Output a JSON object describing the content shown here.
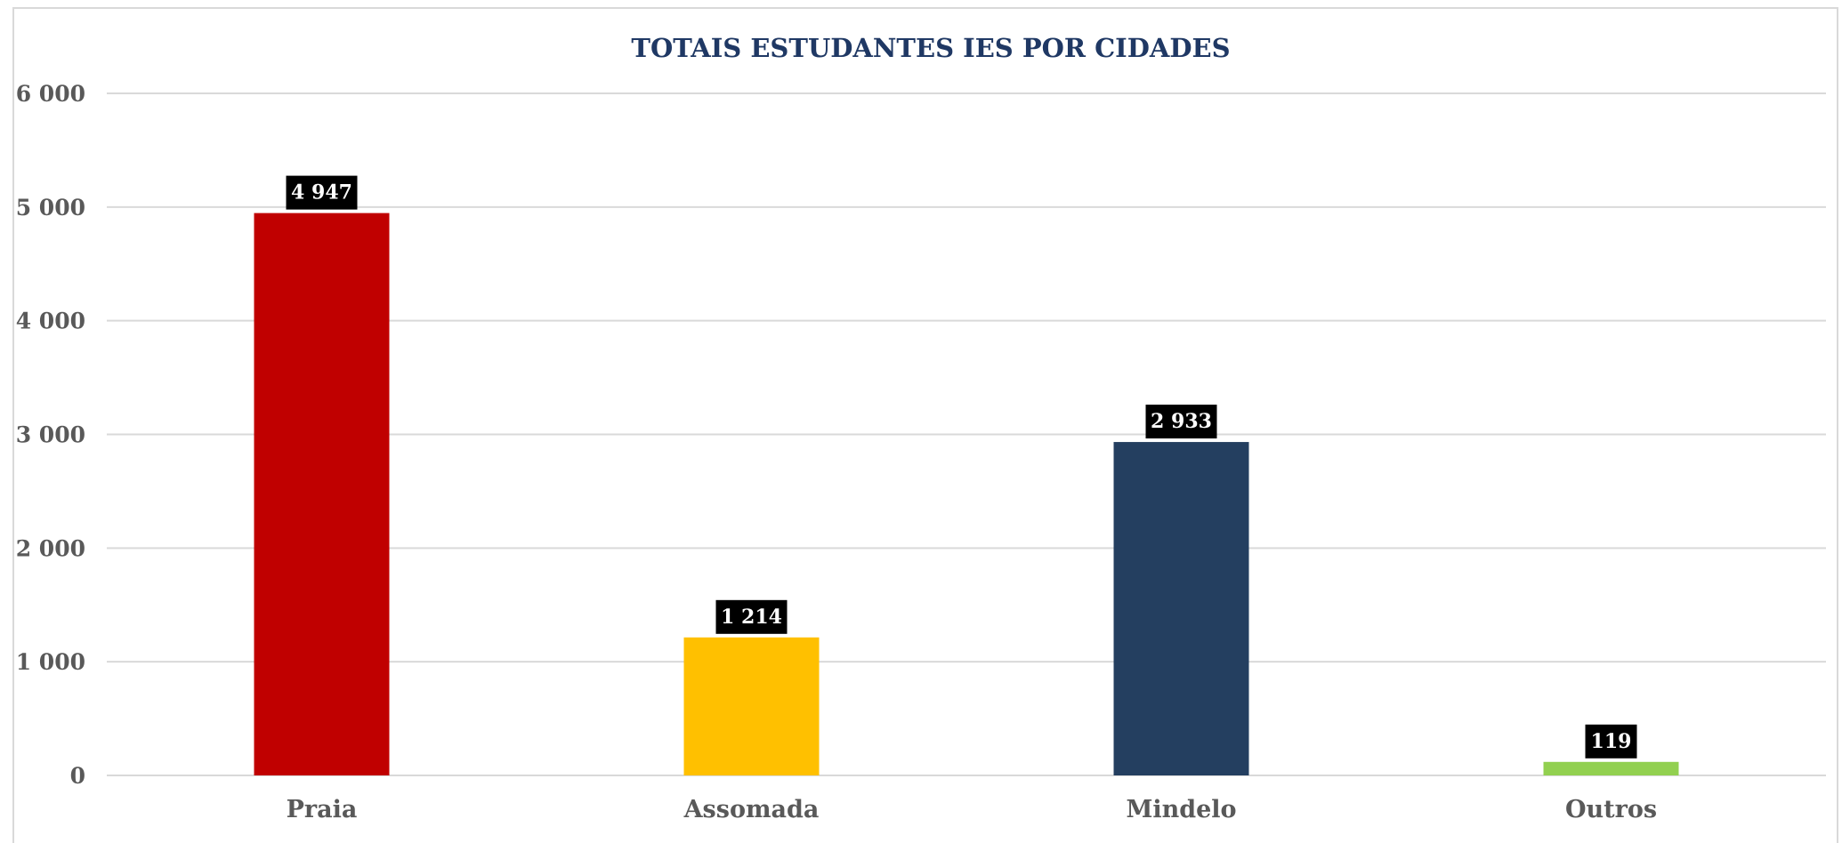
{
  "chart_data": {
    "type": "bar",
    "title": "TOTAIS ESTUDANTES IES POR CIDADES",
    "categories": [
      "Praia",
      "Assomada",
      "Mindelo",
      "Outros"
    ],
    "values": [
      4947,
      1214,
      2933,
      119
    ],
    "data_labels": [
      "4 947",
      "1 214",
      "2 933",
      "119"
    ],
    "colors": [
      "#c00000",
      "#ffc000",
      "#243f60",
      "#92d050"
    ],
    "ylim": [
      0,
      6000
    ],
    "yticks": [
      0,
      1000,
      2000,
      3000,
      4000,
      5000,
      6000
    ],
    "ytick_labels": [
      "0",
      "1 000",
      "2 000",
      "3 000",
      "4 000",
      "5 000",
      "6 000"
    ],
    "xlabel": "",
    "ylabel": "",
    "grid": true,
    "legend": "none"
  }
}
